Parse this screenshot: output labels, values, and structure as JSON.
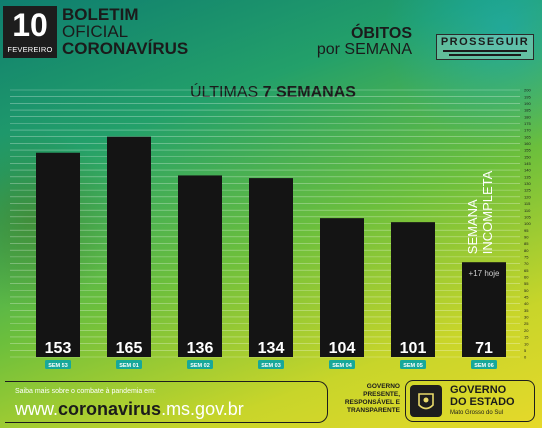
{
  "header": {
    "day": "10",
    "month": "FEVEREIRO",
    "title_line1": "BOLETIM",
    "title_line2": "OFICIAL",
    "title_line3": "CORONAVÍRUS",
    "obitos_line1": "ÓBITOS",
    "obitos_line2": "por SEMANA",
    "logo_text": "PROSSEGUIR"
  },
  "chart_title": {
    "prefix": "ÚLTIMAS ",
    "bold": "7 SEMANAS"
  },
  "chart_data": {
    "type": "bar",
    "title": "ÚLTIMAS 7 SEMANAS",
    "categories": [
      "SEM 53",
      "SEM 01",
      "SEM 02",
      "SEM 03",
      "SEM 04",
      "SEM 05",
      "SEM 06"
    ],
    "values": [
      153,
      165,
      136,
      134,
      104,
      101,
      71
    ],
    "data_labels": [
      "153",
      "165",
      "136",
      "134",
      "104",
      "101",
      "71"
    ],
    "ylim": [
      0,
      200
    ],
    "yticks": [
      "0",
      "5",
      "10",
      "15",
      "20",
      "25",
      "30",
      "35",
      "40",
      "45",
      "50",
      "55",
      "60",
      "65",
      "70",
      "75",
      "80",
      "85",
      "90",
      "95",
      "100",
      "105",
      "110",
      "115",
      "120",
      "125",
      "130",
      "135",
      "140",
      "145",
      "150",
      "155",
      "160",
      "165",
      "170",
      "175",
      "180",
      "185",
      "190",
      "195",
      "200"
    ],
    "grid": true,
    "annotations": {
      "incomplete_line1": "SEMANA",
      "incomplete_line2": "INCOMPLETA",
      "today": "+17 hoje"
    },
    "bar_color": "#141414",
    "category_label_bg": "#17a89a"
  },
  "footer": {
    "small_text": "Saiba mais sobre o combate à pandemia em:",
    "url_prefix": "www.",
    "url_bold": "coronavirus",
    "url_suffix": ".ms.gov.br",
    "gov_motto_1": "GOVERNO",
    "gov_motto_2": "PRESENTE,",
    "gov_motto_3": "RESPONSÁVEL E",
    "gov_motto_4": "TRANSPARENTE",
    "gov_name_1": "GOVERNO",
    "gov_name_2": "DO ESTADO",
    "gov_state": "Mato Grosso do Sul"
  }
}
